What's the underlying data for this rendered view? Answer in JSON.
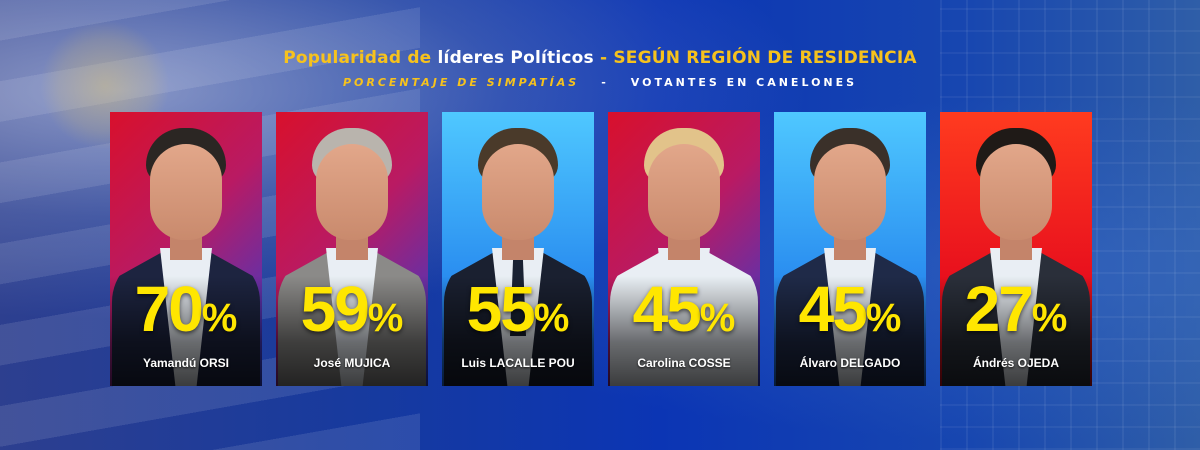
{
  "header": {
    "title_part1": "Popularidad de ",
    "title_part2": "líderes Políticos",
    "title_part3": " - SEGÚN REGIÓN DE RESIDENCIA",
    "subtitle_left": "PORCENTAJE DE SIMPATÍAS",
    "subtitle_sep": "-",
    "subtitle_right": "VOTANTES EN CANELONES"
  },
  "cards": [
    {
      "value": "70",
      "symbol": "%",
      "name": "Yamandú ORSI",
      "bg": "red",
      "hair": "#2b2623",
      "jacket": "#1d2440",
      "tie": false
    },
    {
      "value": "59",
      "symbol": "%",
      "name": "José MUJICA",
      "bg": "red",
      "hair": "#b9b4ad",
      "jacket": "#8b8a88",
      "tie": false
    },
    {
      "value": "55",
      "symbol": "%",
      "name": "Luis LACALLE POU",
      "bg": "blue",
      "hair": "#4a3a2a",
      "jacket": "#1a2030",
      "tie": true
    },
    {
      "value": "45",
      "symbol": "%",
      "name": "Carolina COSSE",
      "bg": "red",
      "hair": "#e2c38a",
      "jacket": "#e9eef4",
      "tie": false
    },
    {
      "value": "45",
      "symbol": "%",
      "name": "Álvaro DELGADO",
      "bg": "blue",
      "hair": "#3a3029",
      "jacket": "#1f2a48",
      "tie": false
    },
    {
      "value": "27",
      "symbol": "%",
      "name": "Ándrés OJEDA",
      "bg": "orange",
      "hair": "#1f1a17",
      "jacket": "#2a2f3a",
      "tie": false
    }
  ],
  "colors": {
    "accent_yellow": "#f6c21d",
    "percent_yellow": "#ffe600",
    "frente_red": "#d8102c",
    "partido_blue": "#2a8ef0"
  }
}
